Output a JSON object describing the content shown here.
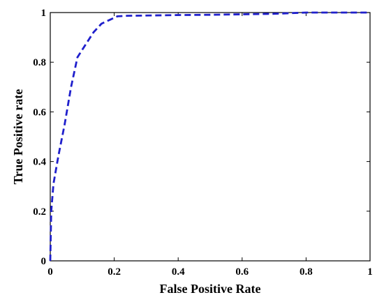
{
  "chart_data": {
    "type": "line",
    "title": "",
    "xlabel": "False Positive Rate",
    "ylabel": "True Positive rate",
    "xlim": [
      0,
      1
    ],
    "ylim": [
      0,
      1
    ],
    "x_ticks": [
      "0",
      "0.2",
      "0.4",
      "0.6",
      "0.8",
      "1"
    ],
    "y_ticks": [
      "0",
      "0.2",
      "0.4",
      "0.6",
      "0.8",
      "1"
    ],
    "grid": false,
    "line_style": "dashed",
    "series": [
      {
        "color": "#1f1fcc",
        "x": [
          0,
          0.003,
          0.01,
          0.025,
          0.045,
          0.065,
          0.085,
          0.11,
          0.135,
          0.16,
          0.185,
          0.21,
          0.24,
          0.3,
          0.4,
          0.5,
          0.6,
          0.7,
          0.8,
          0.9,
          1.0
        ],
        "y": [
          0,
          0.2,
          0.31,
          0.42,
          0.55,
          0.7,
          0.82,
          0.87,
          0.92,
          0.955,
          0.97,
          0.985,
          0.987,
          0.988,
          0.99,
          0.991,
          0.993,
          0.995,
          1.0,
          1.0,
          1.0
        ]
      }
    ]
  }
}
